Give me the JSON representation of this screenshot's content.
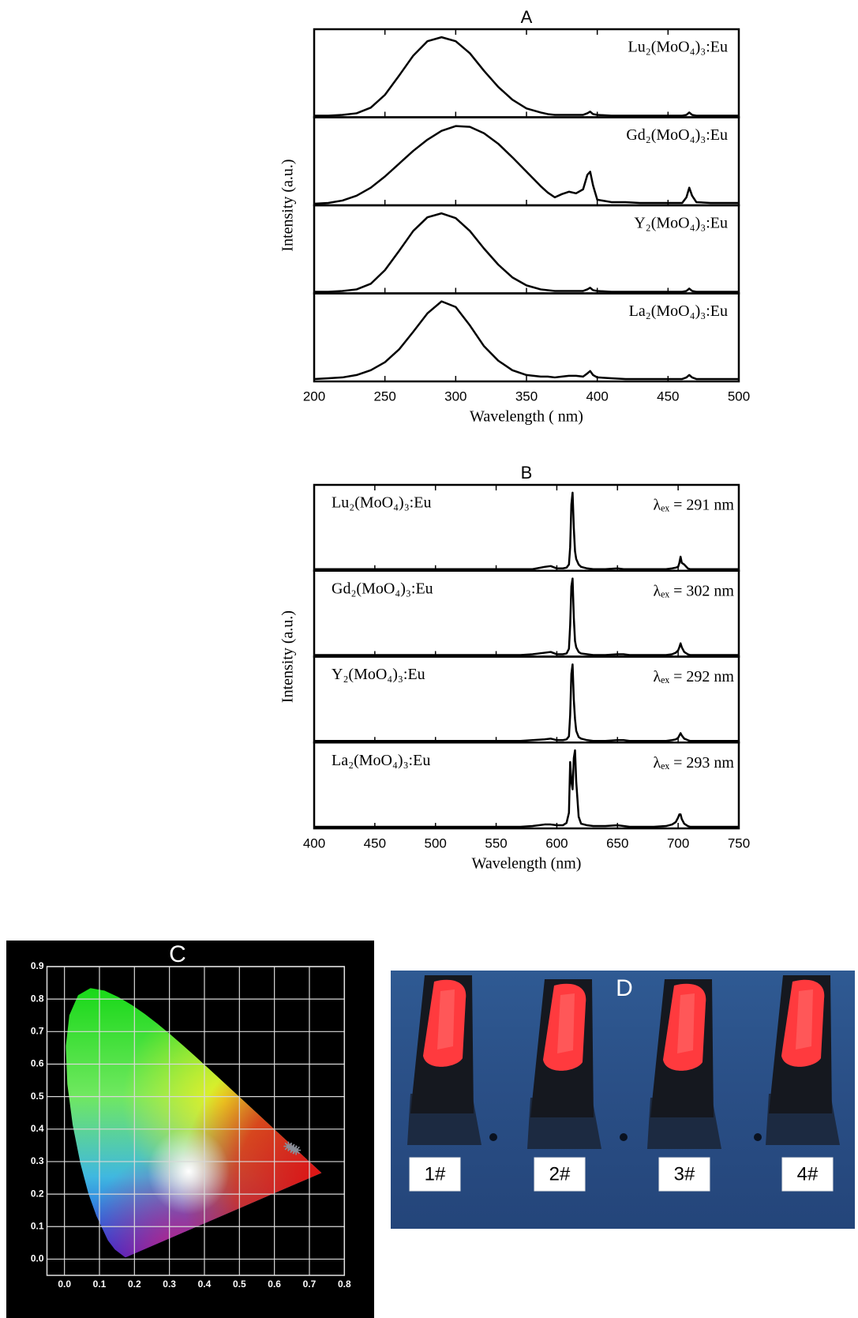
{
  "chart_data": [
    {
      "type": "line",
      "title": "A",
      "xlabel": "Wavelength ( nm)",
      "ylabel": "Intensity (a.u.)",
      "xlim": [
        200,
        500
      ],
      "xticks": [
        200,
        250,
        300,
        350,
        400,
        450,
        500
      ],
      "ylim": [
        0,
        1.1
      ],
      "x": [
        200,
        210,
        220,
        230,
        240,
        250,
        260,
        270,
        280,
        290,
        300,
        310,
        320,
        330,
        340,
        350,
        360,
        365,
        370,
        375,
        380,
        385,
        390,
        393,
        395,
        397,
        400,
        410,
        420,
        430,
        440,
        450,
        460,
        463,
        465,
        467,
        470,
        480,
        490,
        500
      ],
      "series": [
        {
          "name": "Lu₂(MoO₄)₃:Eu",
          "color": "#000000",
          "values": [
            0.02,
            0.02,
            0.03,
            0.05,
            0.12,
            0.28,
            0.52,
            0.77,
            0.95,
            1.0,
            0.95,
            0.8,
            0.58,
            0.38,
            0.22,
            0.11,
            0.06,
            0.04,
            0.03,
            0.03,
            0.03,
            0.03,
            0.03,
            0.05,
            0.07,
            0.04,
            0.03,
            0.02,
            0.02,
            0.02,
            0.02,
            0.02,
            0.02,
            0.03,
            0.06,
            0.03,
            0.02,
            0.02,
            0.02,
            0.02
          ]
        },
        {
          "name": "Gd₂(MoO₄)₃:Eu",
          "color": "#000000",
          "values": [
            0.02,
            0.03,
            0.06,
            0.12,
            0.22,
            0.36,
            0.52,
            0.68,
            0.82,
            0.93,
            0.99,
            0.98,
            0.9,
            0.77,
            0.6,
            0.42,
            0.24,
            0.16,
            0.1,
            0.14,
            0.17,
            0.15,
            0.2,
            0.38,
            0.42,
            0.25,
            0.07,
            0.04,
            0.04,
            0.03,
            0.03,
            0.03,
            0.03,
            0.1,
            0.22,
            0.12,
            0.04,
            0.03,
            0.03,
            0.03
          ]
        },
        {
          "name": "Y₂(MoO₄)₃:Eu",
          "color": "#000000",
          "values": [
            0.02,
            0.02,
            0.03,
            0.05,
            0.12,
            0.29,
            0.53,
            0.78,
            0.95,
            1.0,
            0.94,
            0.78,
            0.56,
            0.36,
            0.2,
            0.1,
            0.05,
            0.04,
            0.03,
            0.03,
            0.03,
            0.03,
            0.03,
            0.05,
            0.07,
            0.04,
            0.03,
            0.02,
            0.02,
            0.02,
            0.02,
            0.02,
            0.02,
            0.03,
            0.06,
            0.03,
            0.02,
            0.02,
            0.02,
            0.02
          ]
        },
        {
          "name": "La₂(MoO₄)₃:Eu",
          "color": "#000000",
          "values": [
            0.03,
            0.04,
            0.05,
            0.08,
            0.14,
            0.24,
            0.4,
            0.62,
            0.85,
            1.0,
            0.93,
            0.7,
            0.44,
            0.26,
            0.14,
            0.08,
            0.06,
            0.06,
            0.05,
            0.06,
            0.07,
            0.07,
            0.06,
            0.1,
            0.13,
            0.08,
            0.05,
            0.04,
            0.03,
            0.03,
            0.03,
            0.03,
            0.03,
            0.05,
            0.08,
            0.05,
            0.03,
            0.03,
            0.03,
            0.03
          ]
        }
      ]
    },
    {
      "type": "line",
      "title": "B",
      "xlabel": "Wavelength (nm)",
      "ylabel": "Intensity (a.u.)",
      "xlim": [
        400,
        750
      ],
      "xticks": [
        400,
        450,
        500,
        550,
        600,
        650,
        700,
        750
      ],
      "ylim": [
        0,
        1.1
      ],
      "x": [
        400,
        450,
        500,
        550,
        570,
        580,
        590,
        595,
        600,
        605,
        608,
        610,
        611,
        612,
        613,
        614,
        615,
        616,
        618,
        620,
        625,
        630,
        640,
        650,
        655,
        660,
        680,
        690,
        695,
        698,
        700,
        701,
        702,
        703,
        705,
        708,
        710,
        720,
        750
      ],
      "series": [
        {
          "name": "Lu₂(MoO₄)₃:Eu",
          "annotation": "λₑₓ = 291 nm",
          "color": "#000000",
          "values": [
            0.02,
            0.02,
            0.02,
            0.02,
            0.02,
            0.02,
            0.05,
            0.06,
            0.03,
            0.03,
            0.04,
            0.08,
            0.3,
            0.85,
            1.0,
            0.55,
            0.25,
            0.15,
            0.08,
            0.05,
            0.03,
            0.02,
            0.02,
            0.03,
            0.02,
            0.02,
            0.02,
            0.02,
            0.03,
            0.04,
            0.05,
            0.1,
            0.18,
            0.1,
            0.08,
            0.03,
            0.02,
            0.02,
            0.02
          ]
        },
        {
          "name": "Gd₂(MoO₄)₃:Eu",
          "annotation": "λₑₓ = 302 nm",
          "color": "#000000",
          "values": [
            0.02,
            0.02,
            0.02,
            0.02,
            0.02,
            0.03,
            0.05,
            0.06,
            0.03,
            0.03,
            0.04,
            0.1,
            0.4,
            0.9,
            1.0,
            0.5,
            0.2,
            0.12,
            0.06,
            0.04,
            0.03,
            0.02,
            0.02,
            0.03,
            0.03,
            0.02,
            0.02,
            0.02,
            0.03,
            0.05,
            0.08,
            0.12,
            0.17,
            0.12,
            0.06,
            0.03,
            0.02,
            0.02,
            0.02
          ]
        },
        {
          "name": "Y₂(MoO₄)₃:Eu",
          "annotation": "λₑₓ = 292 nm",
          "color": "#000000",
          "values": [
            0.02,
            0.02,
            0.02,
            0.02,
            0.02,
            0.03,
            0.04,
            0.05,
            0.03,
            0.03,
            0.04,
            0.08,
            0.35,
            0.88,
            1.0,
            0.55,
            0.3,
            0.15,
            0.07,
            0.05,
            0.03,
            0.02,
            0.02,
            0.03,
            0.03,
            0.02,
            0.02,
            0.02,
            0.03,
            0.04,
            0.06,
            0.09,
            0.12,
            0.09,
            0.05,
            0.03,
            0.02,
            0.02,
            0.02
          ]
        },
        {
          "name": "La₂(MoO₄)₃:Eu",
          "annotation": "λₑₓ = 293 nm",
          "color": "#000000",
          "values": [
            0.02,
            0.02,
            0.02,
            0.02,
            0.02,
            0.03,
            0.05,
            0.05,
            0.04,
            0.04,
            0.07,
            0.2,
            0.85,
            0.6,
            0.5,
            0.9,
            1.0,
            0.6,
            0.15,
            0.06,
            0.04,
            0.03,
            0.03,
            0.04,
            0.03,
            0.02,
            0.02,
            0.03,
            0.05,
            0.08,
            0.14,
            0.18,
            0.18,
            0.12,
            0.06,
            0.03,
            0.02,
            0.02,
            0.02
          ]
        }
      ]
    },
    {
      "type": "scatter",
      "title": "C",
      "color": "#8a8f99",
      "xlim": [
        -0.05,
        0.8
      ],
      "ylim": [
        -0.05,
        0.9
      ],
      "xticks": [
        {
          "value": 0,
          "label": "0.0"
        },
        0.1,
        0.2,
        0.3,
        0.4,
        0.5,
        0.6,
        0.7,
        0.8
      ],
      "yticks": [
        {
          "value": 0,
          "label": "0.0"
        },
        0.1,
        0.2,
        0.3,
        0.4,
        0.5,
        0.6,
        0.7,
        0.8,
        0.9
      ],
      "x": [
        0.64,
        0.648,
        0.655,
        0.662
      ],
      "values": [
        0.347,
        0.343,
        0.338,
        0.335
      ]
    }
  ],
  "photo": {
    "title": "D",
    "labels": [
      "1#",
      "2#",
      "3#",
      "4#"
    ]
  }
}
